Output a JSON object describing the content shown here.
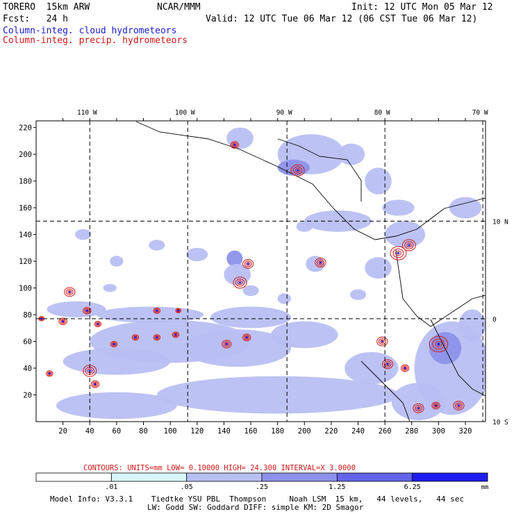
{
  "header": {
    "model": "TORERO  15km ARW",
    "center": "NCAR/MMM",
    "init": "Init: 12 UTC Mon 05 Mar 12",
    "fcst": "Fcst:   24 h",
    "valid": "Valid: 12 UTC Tue 06 Mar 12 (06 CST Tue 06 Mar 12)",
    "field1": "Column-integ. cloud hydrometeors",
    "field2": "Column-integ. precip. hydrometeors"
  },
  "colors": {
    "cloud": "#1a1acc",
    "precip": "#d01818",
    "shade1": "#d8f6fb",
    "shade2": "#b8bff2",
    "shade3": "#8d92ea",
    "shade4": "#6464ea",
    "shade5": "#1e1ef0"
  },
  "chart_data": {
    "type": "map-contour",
    "x_axis": {
      "ticks": [
        20,
        40,
        60,
        80,
        100,
        120,
        140,
        160,
        180,
        200,
        220,
        240,
        260,
        280,
        300,
        320
      ],
      "range": [
        0,
        335
      ]
    },
    "y_axis": {
      "ticks": [
        20,
        40,
        60,
        80,
        100,
        120,
        140,
        160,
        180,
        200,
        220
      ],
      "range": [
        0,
        225
      ]
    },
    "lon_labels": [
      {
        "x": 40,
        "label": "110 W"
      },
      {
        "x": 113,
        "label": "100 W"
      },
      {
        "x": 187,
        "label": "90 W"
      },
      {
        "x": 260,
        "label": "80 W"
      },
      {
        "x": 333,
        "label": "70 W"
      }
    ],
    "lat_labels": [
      {
        "y": 150,
        "label": "10 N"
      },
      {
        "y": 77,
        "label": "0"
      },
      {
        "y": 0,
        "label": "10 S"
      }
    ],
    "contour_info": "CONTOURS:  UNITS=mm  LOW= 0.10000     HIGH=  24.300     INTERVAL=X  3.0000",
    "colorbar": {
      "levels": [
        ".01",
        ".05",
        ".25",
        "1.25",
        "6.25"
      ],
      "unit": "mm"
    },
    "cloud_areas": [
      {
        "x": 148,
        "y": 122,
        "rx": 6,
        "ry": 6,
        "lvl": 3
      },
      {
        "x": 150,
        "y": 110,
        "rx": 10,
        "ry": 8,
        "lvl": 2
      },
      {
        "x": 120,
        "y": 125,
        "rx": 8,
        "ry": 5,
        "lvl": 2
      },
      {
        "x": 90,
        "y": 132,
        "rx": 6,
        "ry": 4,
        "lvl": 2
      },
      {
        "x": 60,
        "y": 120,
        "rx": 5,
        "ry": 4,
        "lvl": 2
      },
      {
        "x": 55,
        "y": 100,
        "rx": 5,
        "ry": 3,
        "lvl": 2
      },
      {
        "x": 160,
        "y": 98,
        "rx": 6,
        "ry": 4,
        "lvl": 2
      },
      {
        "x": 185,
        "y": 92,
        "rx": 5,
        "ry": 4,
        "lvl": 2
      },
      {
        "x": 208,
        "y": 118,
        "rx": 7,
        "ry": 6,
        "lvl": 2
      },
      {
        "x": 240,
        "y": 95,
        "rx": 6,
        "ry": 4,
        "lvl": 2
      },
      {
        "x": 35,
        "y": 140,
        "rx": 6,
        "ry": 4,
        "lvl": 2
      },
      {
        "x": 200,
        "y": 146,
        "rx": 6,
        "ry": 4,
        "lvl": 2
      },
      {
        "x": 30,
        "y": 84,
        "rx": 22,
        "ry": 6,
        "lvl": 2
      },
      {
        "x": 85,
        "y": 80,
        "rx": 40,
        "ry": 6,
        "lvl": 2
      },
      {
        "x": 160,
        "y": 78,
        "rx": 30,
        "ry": 8,
        "lvl": 2
      },
      {
        "x": 100,
        "y": 60,
        "rx": 60,
        "ry": 16,
        "lvl": 2
      },
      {
        "x": 60,
        "y": 45,
        "rx": 40,
        "ry": 10,
        "lvl": 2
      },
      {
        "x": 150,
        "y": 55,
        "rx": 40,
        "ry": 14,
        "lvl": 2
      },
      {
        "x": 200,
        "y": 65,
        "rx": 25,
        "ry": 10,
        "lvl": 2
      },
      {
        "x": 180,
        "y": 20,
        "rx": 90,
        "ry": 14,
        "lvl": 2
      },
      {
        "x": 60,
        "y": 12,
        "rx": 45,
        "ry": 10,
        "lvl": 2
      },
      {
        "x": 250,
        "y": 40,
        "rx": 20,
        "ry": 12,
        "lvl": 2
      },
      {
        "x": 310,
        "y": 40,
        "rx": 28,
        "ry": 35,
        "lvl": 2
      },
      {
        "x": 305,
        "y": 55,
        "rx": 12,
        "ry": 12,
        "lvl": 3
      },
      {
        "x": 325,
        "y": 72,
        "rx": 10,
        "ry": 12,
        "lvl": 2
      },
      {
        "x": 285,
        "y": 15,
        "rx": 20,
        "ry": 14,
        "lvl": 2
      },
      {
        "x": 275,
        "y": 140,
        "rx": 15,
        "ry": 10,
        "lvl": 2
      },
      {
        "x": 270,
        "y": 160,
        "rx": 12,
        "ry": 6,
        "lvl": 2
      },
      {
        "x": 255,
        "y": 180,
        "rx": 10,
        "ry": 10,
        "lvl": 2
      },
      {
        "x": 235,
        "y": 200,
        "rx": 10,
        "ry": 8,
        "lvl": 2
      },
      {
        "x": 205,
        "y": 200,
        "rx": 25,
        "ry": 15,
        "lvl": 2
      },
      {
        "x": 192,
        "y": 190,
        "rx": 12,
        "ry": 6,
        "lvl": 3
      },
      {
        "x": 152,
        "y": 212,
        "rx": 10,
        "ry": 8,
        "lvl": 2
      },
      {
        "x": 225,
        "y": 150,
        "rx": 25,
        "ry": 8,
        "lvl": 2
      },
      {
        "x": 255,
        "y": 115,
        "rx": 10,
        "ry": 8,
        "lvl": 2
      },
      {
        "x": 320,
        "y": 160,
        "rx": 12,
        "ry": 8,
        "lvl": 2
      }
    ],
    "precip_cells": [
      {
        "x": 40,
        "y": 38,
        "r": 5
      },
      {
        "x": 44,
        "y": 28,
        "r": 3
      },
      {
        "x": 10,
        "y": 36,
        "r": 2.5
      },
      {
        "x": 20,
        "y": 75,
        "r": 3
      },
      {
        "x": 38,
        "y": 83,
        "r": 3
      },
      {
        "x": 46,
        "y": 73,
        "r": 2.5
      },
      {
        "x": 4,
        "y": 77,
        "r": 2
      },
      {
        "x": 90,
        "y": 83,
        "r": 2.5
      },
      {
        "x": 106,
        "y": 83,
        "r": 2
      },
      {
        "x": 74,
        "y": 63,
        "r": 2.5
      },
      {
        "x": 90,
        "y": 63,
        "r": 2.5
      },
      {
        "x": 104,
        "y": 65,
        "r": 2.5
      },
      {
        "x": 142,
        "y": 58,
        "r": 3.5
      },
      {
        "x": 157,
        "y": 63,
        "r": 3
      },
      {
        "x": 152,
        "y": 104,
        "r": 5
      },
      {
        "x": 158,
        "y": 118,
        "r": 4
      },
      {
        "x": 212,
        "y": 119,
        "r": 4
      },
      {
        "x": 195,
        "y": 188,
        "r": 5
      },
      {
        "x": 148,
        "y": 207,
        "r": 3
      },
      {
        "x": 270,
        "y": 126,
        "r": 6
      },
      {
        "x": 278,
        "y": 132,
        "r": 5
      },
      {
        "x": 262,
        "y": 43,
        "r": 4
      },
      {
        "x": 275,
        "y": 40,
        "r": 3
      },
      {
        "x": 300,
        "y": 58,
        "r": 7
      },
      {
        "x": 285,
        "y": 10,
        "r": 4
      },
      {
        "x": 298,
        "y": 12,
        "r": 3
      },
      {
        "x": 315,
        "y": 12,
        "r": 4
      },
      {
        "x": 258,
        "y": 60,
        "r": 4
      },
      {
        "x": 25,
        "y": 97,
        "r": 4
      },
      {
        "x": 58,
        "y": 58,
        "r": 2.5
      }
    ]
  },
  "model_info": "Model Info: V3.3.1    Tiedtke YSU PBL  Thompson     Noah LSM  15 km,   44 levels,   44 sec",
  "model_info2": "LW: Godd SW: Goddard DIFF: simple KM: 2D Smagor"
}
